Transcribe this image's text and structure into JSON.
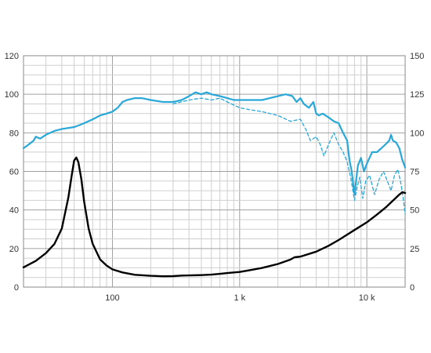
{
  "chart_data": {
    "type": "line",
    "title": "",
    "xlabel": "",
    "ylabel": "",
    "x_scale": "log",
    "xlim": [
      20,
      20000
    ],
    "ylim_left": [
      0,
      120
    ],
    "ylim_right": [
      0,
      150
    ],
    "grid": true,
    "left_ticks": [
      {
        "value": 0,
        "label": "0"
      },
      {
        "value": 20,
        "label": "20"
      },
      {
        "value": 40,
        "label": "40"
      },
      {
        "value": 60,
        "label": "60"
      },
      {
        "value": 80,
        "label": "80"
      },
      {
        "value": 100,
        "label": "100"
      },
      {
        "value": 120,
        "label": "120"
      }
    ],
    "right_ticks": [
      {
        "value": 0,
        "label": "0"
      },
      {
        "value": 25,
        "label": "25"
      },
      {
        "value": 50,
        "label": "50"
      },
      {
        "value": 75,
        "label": "75"
      },
      {
        "value": 100,
        "label": "100"
      },
      {
        "value": 125,
        "label": "125"
      },
      {
        "value": 150,
        "label": "150"
      }
    ],
    "x_ticks": [
      {
        "value": 100,
        "label": "100"
      },
      {
        "value": 1000,
        "label": "1 k"
      },
      {
        "value": 10000,
        "label": "10 k"
      }
    ],
    "colors": {
      "response": "#29a8d8",
      "impedance": "#000000",
      "grid_major": "#a0a0a0",
      "grid_minor": "#cfcfcf"
    },
    "series": [
      {
        "axis": "left",
        "style": "solid",
        "color": "response",
        "points": [
          [
            20,
            72
          ],
          [
            22,
            74
          ],
          [
            24,
            76
          ],
          [
            25,
            78
          ],
          [
            27,
            77
          ],
          [
            30,
            79
          ],
          [
            35,
            81
          ],
          [
            40,
            82
          ],
          [
            50,
            83
          ],
          [
            55,
            84
          ],
          [
            60,
            85
          ],
          [
            70,
            87
          ],
          [
            80,
            89
          ],
          [
            90,
            90
          ],
          [
            100,
            91
          ],
          [
            110,
            93
          ],
          [
            120,
            96
          ],
          [
            130,
            97
          ],
          [
            150,
            98
          ],
          [
            170,
            98
          ],
          [
            200,
            97
          ],
          [
            250,
            96
          ],
          [
            300,
            96
          ],
          [
            350,
            97
          ],
          [
            400,
            99
          ],
          [
            450,
            101
          ],
          [
            500,
            100
          ],
          [
            550,
            101
          ],
          [
            600,
            100
          ],
          [
            700,
            99
          ],
          [
            800,
            98
          ],
          [
            900,
            97
          ],
          [
            1000,
            97
          ],
          [
            1200,
            97
          ],
          [
            1500,
            97
          ],
          [
            2000,
            99
          ],
          [
            2300,
            100
          ],
          [
            2600,
            99
          ],
          [
            2800,
            96
          ],
          [
            3000,
            98
          ],
          [
            3200,
            95
          ],
          [
            3500,
            93
          ],
          [
            3800,
            96
          ],
          [
            4000,
            90
          ],
          [
            4200,
            89
          ],
          [
            4500,
            90
          ],
          [
            5000,
            88
          ],
          [
            5500,
            86
          ],
          [
            6000,
            85
          ],
          [
            6500,
            80
          ],
          [
            7000,
            76
          ],
          [
            7300,
            66
          ],
          [
            7600,
            60
          ],
          [
            8000,
            48
          ],
          [
            8500,
            63
          ],
          [
            9000,
            67
          ],
          [
            9500,
            60
          ],
          [
            10000,
            64
          ],
          [
            11000,
            70
          ],
          [
            12000,
            70
          ],
          [
            13000,
            72
          ],
          [
            14000,
            74
          ],
          [
            15000,
            76
          ],
          [
            15500,
            79
          ],
          [
            16000,
            76
          ],
          [
            17000,
            75
          ],
          [
            18000,
            72
          ],
          [
            19000,
            66
          ],
          [
            20000,
            62
          ]
        ]
      },
      {
        "axis": "left",
        "style": "dashed",
        "color": "response",
        "points": [
          [
            300,
            95
          ],
          [
            400,
            97
          ],
          [
            500,
            98
          ],
          [
            600,
            97
          ],
          [
            700,
            98
          ],
          [
            800,
            96
          ],
          [
            1000,
            93
          ],
          [
            1200,
            92
          ],
          [
            1500,
            91
          ],
          [
            2000,
            89
          ],
          [
            2500,
            86
          ],
          [
            3000,
            87
          ],
          [
            3300,
            82
          ],
          [
            3600,
            76
          ],
          [
            4000,
            78
          ],
          [
            4300,
            74
          ],
          [
            4600,
            68
          ],
          [
            5000,
            74
          ],
          [
            5500,
            80
          ],
          [
            6000,
            74
          ],
          [
            6500,
            70
          ],
          [
            7000,
            65
          ],
          [
            7500,
            56
          ],
          [
            8000,
            45
          ],
          [
            8400,
            52
          ],
          [
            8800,
            57
          ],
          [
            9300,
            46
          ],
          [
            9800,
            55
          ],
          [
            10500,
            58
          ],
          [
            11500,
            48
          ],
          [
            12500,
            56
          ],
          [
            13500,
            60
          ],
          [
            14500,
            55
          ],
          [
            15500,
            50
          ],
          [
            16500,
            58
          ],
          [
            17500,
            61
          ],
          [
            18500,
            54
          ],
          [
            19500,
            44
          ],
          [
            20000,
            38
          ]
        ]
      },
      {
        "axis": "right",
        "style": "solid",
        "color": "impedance",
        "points": [
          [
            20,
            12.8
          ],
          [
            25,
            17
          ],
          [
            30,
            22
          ],
          [
            35,
            28
          ],
          [
            40,
            38
          ],
          [
            45,
            58
          ],
          [
            48,
            73
          ],
          [
            50,
            82
          ],
          [
            52,
            84
          ],
          [
            54,
            81
          ],
          [
            57,
            70
          ],
          [
            60,
            55
          ],
          [
            65,
            38
          ],
          [
            70,
            28
          ],
          [
            80,
            18
          ],
          [
            90,
            14
          ],
          [
            100,
            11.5
          ],
          [
            120,
            9.5
          ],
          [
            150,
            8
          ],
          [
            200,
            7.3
          ],
          [
            250,
            7
          ],
          [
            300,
            7.1
          ],
          [
            350,
            7.5
          ],
          [
            400,
            7.6
          ],
          [
            500,
            7.8
          ],
          [
            600,
            8.1
          ],
          [
            700,
            8.6
          ],
          [
            800,
            9.1
          ],
          [
            1000,
            9.8
          ],
          [
            1200,
            11
          ],
          [
            1500,
            12.4
          ],
          [
            2000,
            15
          ],
          [
            2500,
            17.8
          ],
          [
            2700,
            19.3
          ],
          [
            3000,
            19.8
          ],
          [
            4000,
            23
          ],
          [
            5000,
            26.8
          ],
          [
            6000,
            30.5
          ],
          [
            7000,
            34
          ],
          [
            8000,
            37
          ],
          [
            10000,
            42
          ],
          [
            12000,
            47
          ],
          [
            14000,
            51.5
          ],
          [
            16000,
            56
          ],
          [
            18000,
            60
          ],
          [
            19000,
            61.5
          ],
          [
            20000,
            61
          ]
        ]
      }
    ]
  }
}
